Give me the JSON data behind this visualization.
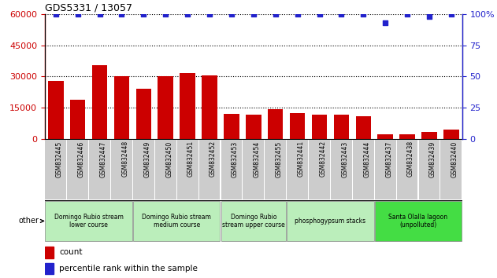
{
  "title": "GDS5331 / 13057",
  "samples": [
    "GSM832445",
    "GSM832446",
    "GSM832447",
    "GSM832448",
    "GSM832449",
    "GSM832450",
    "GSM832451",
    "GSM832452",
    "GSM832453",
    "GSM832454",
    "GSM832455",
    "GSM832441",
    "GSM832442",
    "GSM832443",
    "GSM832444",
    "GSM832437",
    "GSM832438",
    "GSM832439",
    "GSM832440"
  ],
  "counts": [
    28000,
    19000,
    35500,
    30000,
    24000,
    30000,
    31500,
    30500,
    12000,
    11500,
    14500,
    12500,
    11500,
    11500,
    11000,
    2200,
    2300,
    3500,
    4500
  ],
  "percentiles": [
    100,
    100,
    100,
    100,
    100,
    100,
    100,
    100,
    100,
    100,
    100,
    100,
    100,
    100,
    100,
    93,
    100,
    98,
    100
  ],
  "groups": [
    {
      "label": "Domingo Rubio stream\nlower course",
      "start": 0,
      "end": 4,
      "color": "#bbeebb"
    },
    {
      "label": "Domingo Rubio stream\nmedium course",
      "start": 4,
      "end": 8,
      "color": "#bbeebb"
    },
    {
      "label": "Domingo Rubio\nstream upper course",
      "start": 8,
      "end": 11,
      "color": "#bbeebb"
    },
    {
      "label": "phosphogypsum stacks",
      "start": 11,
      "end": 15,
      "color": "#bbeebb"
    },
    {
      "label": "Santa Olalla lagoon\n(unpolluted)",
      "start": 15,
      "end": 19,
      "color": "#44dd44"
    }
  ],
  "bar_color": "#cc0000",
  "dot_color": "#2222cc",
  "ylim_left": [
    0,
    60000
  ],
  "ylim_right": [
    0,
    100
  ],
  "yticks_left": [
    0,
    15000,
    30000,
    45000,
    60000
  ],
  "yticks_right": [
    0,
    25,
    50,
    75,
    100
  ],
  "xtick_bg_color": "#cccccc",
  "plot_bg_color": "#ffffff"
}
